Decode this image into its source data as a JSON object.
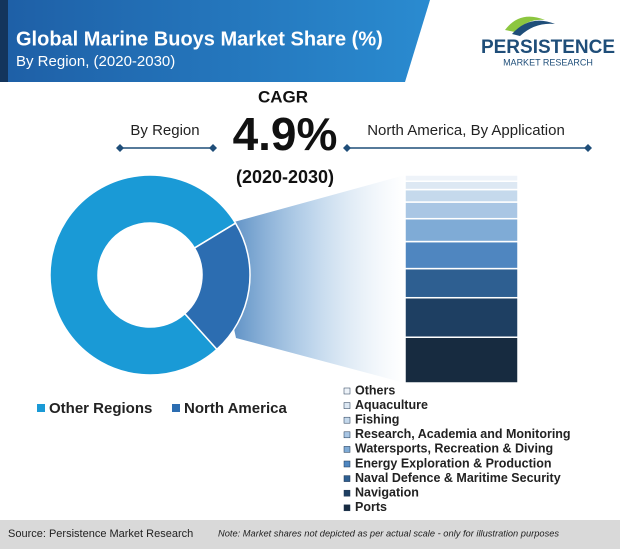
{
  "header": {
    "title": "Global Marine Buoys Market Share (%)",
    "subtitle": "By Region, (2020-2030)"
  },
  "logo": {
    "name": "PERSISTENCE",
    "tagline": "MARKET RESEARCH"
  },
  "cagr": {
    "label": "CAGR",
    "value": "4.9%",
    "period": "(2020-2030)"
  },
  "chart_data": [
    {
      "type": "donut",
      "title": "By Region",
      "categories": [
        "Other Regions",
        "North America"
      ],
      "values": [
        78,
        22
      ],
      "colors": [
        "#1a9ad6",
        "#2c6db1"
      ]
    },
    {
      "type": "stacked-bar",
      "title": "North America, By Application",
      "series": [
        {
          "name": "Others",
          "color": "#eef3f9",
          "values": [
            3
          ]
        },
        {
          "name": "Aquaculture",
          "color": "#dde8f3",
          "values": [
            4
          ]
        },
        {
          "name": "Fishing",
          "color": "#c5d9ec",
          "values": [
            6
          ]
        },
        {
          "name": "Research, Academia and Monitoring",
          "color": "#a9c6e4",
          "values": [
            8
          ]
        },
        {
          "name": "Watersports, Recreation & Diving",
          "color": "#7fabd6",
          "values": [
            11
          ]
        },
        {
          "name": "Energy Exploration & Production",
          "color": "#4f86c0",
          "values": [
            13
          ]
        },
        {
          "name": "Naval Defence & Maritime Security",
          "color": "#2e5f91",
          "values": [
            14
          ]
        },
        {
          "name": "Navigation",
          "color": "#1e3f62",
          "values": [
            19
          ]
        },
        {
          "name": "Ports",
          "color": "#172b40",
          "values": [
            22
          ]
        }
      ]
    }
  ],
  "footer": {
    "source": "Source: Persistence Market Research",
    "note": "Note: Market shares not depicted as per actual scale - only for illustration purposes"
  }
}
